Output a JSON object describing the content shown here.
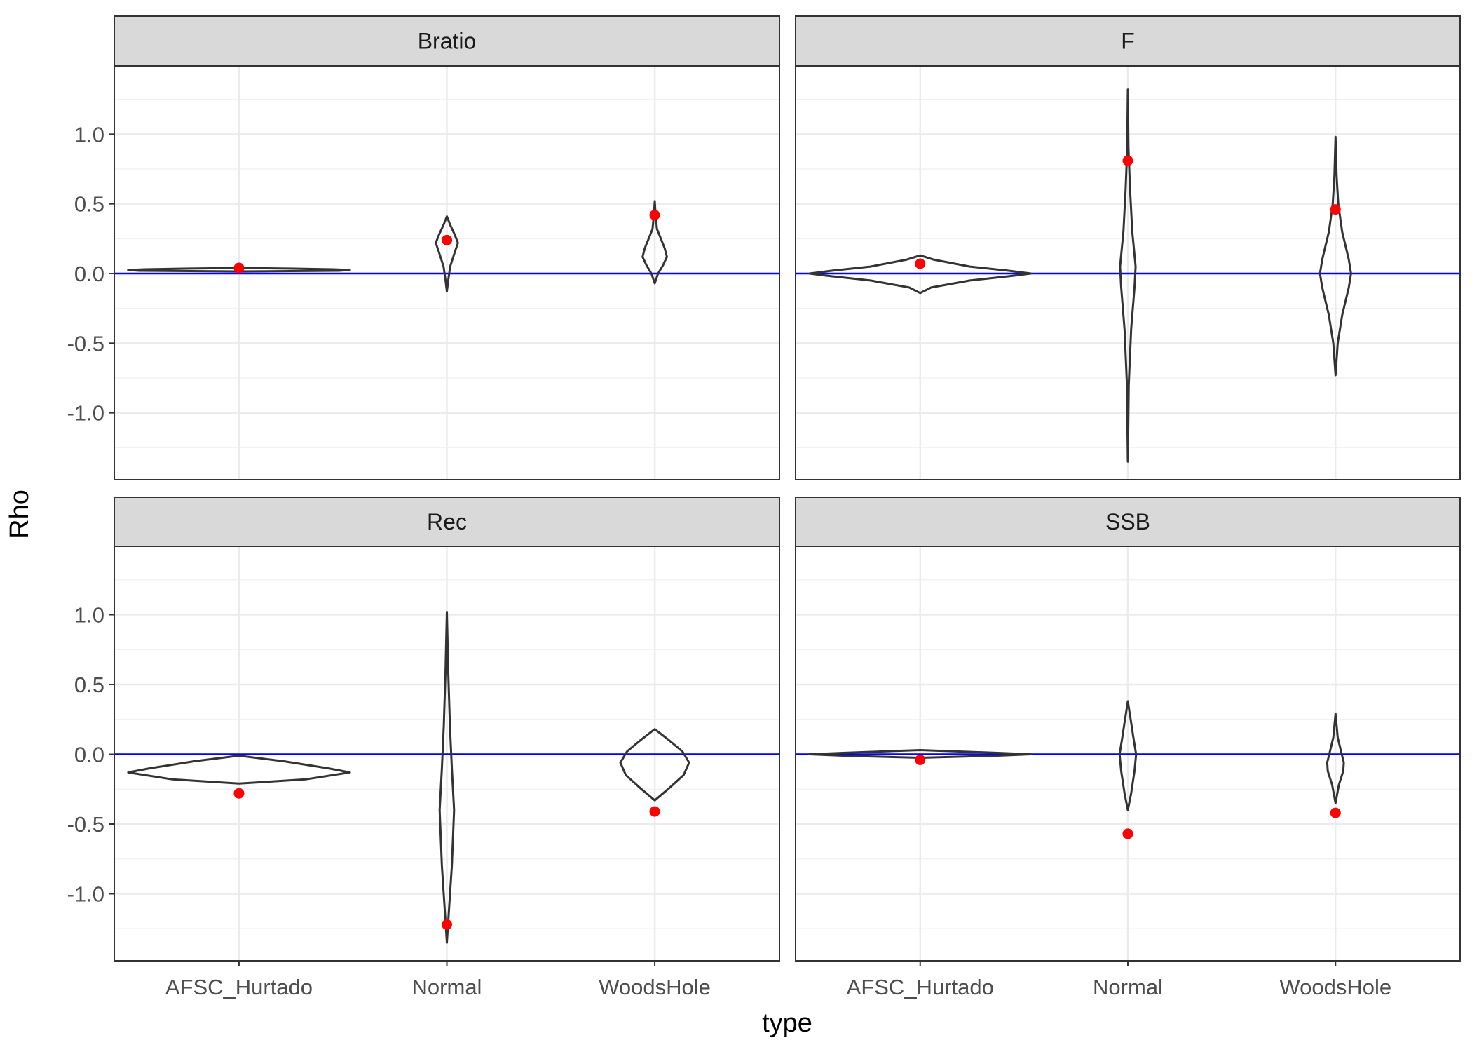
{
  "chart_data": {
    "type": "violin",
    "facet_layout": "2x2",
    "xlabel": "type",
    "ylabel": "Rho",
    "categories": [
      "AFSC_Hurtado",
      "Normal",
      "WoodsHole"
    ],
    "ylim": [
      -1.48,
      1.49
    ],
    "y_ticks": [
      1.0,
      0.5,
      0.0,
      -0.5,
      -1.0
    ],
    "y_tick_labels": [
      "1.0",
      "0.5",
      "0.0",
      "-0.5",
      "-1.0"
    ],
    "reference_line": {
      "y": 0,
      "color": "#0000ff"
    },
    "point_color": "#ff0000",
    "violin_color": "#333333",
    "grid": true,
    "panels": [
      {
        "title": "Bratio",
        "points": [
          0.04,
          0.24,
          0.42
        ],
        "violins": [
          {
            "min": 0.015,
            "max": 0.04,
            "profile": [
              [
                0.015,
                0.0
              ],
              [
                0.02,
                0.9
              ],
              [
                0.025,
                1.0
              ],
              [
                0.03,
                0.85
              ],
              [
                0.035,
                0.5
              ],
              [
                0.04,
                0.0
              ]
            ]
          },
          {
            "min": -0.13,
            "max": 0.41,
            "profile": [
              [
                -0.13,
                0.0
              ],
              [
                -0.05,
                0.012
              ],
              [
                0.05,
                0.03
              ],
              [
                0.15,
                0.07
              ],
              [
                0.22,
                0.1
              ],
              [
                0.28,
                0.07
              ],
              [
                0.35,
                0.03
              ],
              [
                0.41,
                0.0
              ]
            ]
          },
          {
            "min": -0.07,
            "max": 0.52,
            "profile": [
              [
                -0.07,
                0.0
              ],
              [
                0.0,
                0.03
              ],
              [
                0.06,
                0.075
              ],
              [
                0.12,
                0.11
              ],
              [
                0.18,
                0.09
              ],
              [
                0.26,
                0.05
              ],
              [
                0.32,
                0.02
              ],
              [
                0.42,
                0.008
              ],
              [
                0.52,
                0.0
              ]
            ]
          }
        ]
      },
      {
        "title": "F",
        "points": [
          0.07,
          0.81,
          0.46
        ],
        "violins": [
          {
            "min": -0.14,
            "max": 0.13,
            "profile": [
              [
                -0.14,
                0.0
              ],
              [
                -0.1,
                0.1
              ],
              [
                -0.05,
                0.45
              ],
              [
                -0.015,
                0.85
              ],
              [
                0.0,
                1.0
              ],
              [
                0.02,
                0.8
              ],
              [
                0.05,
                0.45
              ],
              [
                0.1,
                0.12
              ],
              [
                0.13,
                0.0
              ]
            ]
          },
          {
            "min": -1.35,
            "max": 1.32,
            "profile": [
              [
                -1.35,
                0.0
              ],
              [
                -0.8,
                0.008
              ],
              [
                -0.4,
                0.03
              ],
              [
                -0.1,
                0.06
              ],
              [
                0.05,
                0.07
              ],
              [
                0.3,
                0.04
              ],
              [
                0.6,
                0.02
              ],
              [
                0.9,
                0.006
              ],
              [
                1.32,
                0.0
              ]
            ]
          },
          {
            "min": -0.73,
            "max": 0.98,
            "profile": [
              [
                -0.73,
                0.0
              ],
              [
                -0.5,
                0.02
              ],
              [
                -0.3,
                0.06
              ],
              [
                -0.1,
                0.12
              ],
              [
                0.0,
                0.14
              ],
              [
                0.1,
                0.12
              ],
              [
                0.3,
                0.06
              ],
              [
                0.5,
                0.025
              ],
              [
                0.7,
                0.01
              ],
              [
                0.98,
                0.0
              ]
            ]
          }
        ]
      },
      {
        "title": "Rec",
        "points": [
          -0.28,
          -1.22,
          -0.41
        ],
        "violins": [
          {
            "min": -0.21,
            "max": -0.01,
            "profile": [
              [
                -0.21,
                0.0
              ],
              [
                -0.18,
                0.6
              ],
              [
                -0.13,
                1.0
              ],
              [
                -0.1,
                0.8
              ],
              [
                -0.05,
                0.4
              ],
              [
                -0.01,
                0.0
              ]
            ]
          },
          {
            "min": -1.35,
            "max": 1.02,
            "profile": [
              [
                -1.35,
                0.0
              ],
              [
                -1.1,
                0.02
              ],
              [
                -0.8,
                0.045
              ],
              [
                -0.4,
                0.065
              ],
              [
                -0.1,
                0.045
              ],
              [
                0.2,
                0.028
              ],
              [
                0.6,
                0.012
              ],
              [
                1.02,
                0.0
              ]
            ]
          },
          {
            "min": -0.33,
            "max": 0.18,
            "profile": [
              [
                -0.33,
                0.0
              ],
              [
                -0.25,
                0.12
              ],
              [
                -0.15,
                0.26
              ],
              [
                -0.06,
                0.31
              ],
              [
                0.02,
                0.25
              ],
              [
                0.1,
                0.13
              ],
              [
                0.18,
                0.0
              ]
            ]
          }
        ]
      },
      {
        "title": "SSB",
        "points": [
          -0.04,
          -0.57,
          -0.42
        ],
        "violins": [
          {
            "min": -0.025,
            "max": 0.03,
            "profile": [
              [
                -0.025,
                0.0
              ],
              [
                -0.01,
                0.7
              ],
              [
                0.0,
                1.0
              ],
              [
                0.01,
                0.7
              ],
              [
                0.02,
                0.35
              ],
              [
                0.03,
                0.0
              ]
            ]
          },
          {
            "min": -0.4,
            "max": 0.38,
            "profile": [
              [
                -0.4,
                0.0
              ],
              [
                -0.28,
                0.03
              ],
              [
                -0.12,
                0.06
              ],
              [
                0.0,
                0.075
              ],
              [
                0.12,
                0.05
              ],
              [
                0.25,
                0.025
              ],
              [
                0.38,
                0.0
              ]
            ]
          },
          {
            "min": -0.35,
            "max": 0.29,
            "profile": [
              [
                -0.35,
                0.0
              ],
              [
                -0.22,
                0.03
              ],
              [
                -0.12,
                0.07
              ],
              [
                -0.06,
                0.075
              ],
              [
                0.02,
                0.05
              ],
              [
                0.12,
                0.02
              ],
              [
                0.29,
                0.0
              ]
            ]
          }
        ]
      }
    ]
  }
}
